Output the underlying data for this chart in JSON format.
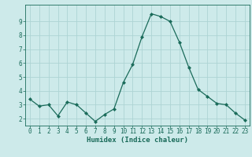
{
  "x": [
    0,
    1,
    2,
    3,
    4,
    5,
    6,
    7,
    8,
    9,
    10,
    11,
    12,
    13,
    14,
    15,
    16,
    17,
    18,
    19,
    20,
    21,
    22,
    23
  ],
  "y": [
    3.4,
    2.9,
    3.0,
    2.2,
    3.2,
    3.0,
    2.4,
    1.8,
    2.3,
    2.7,
    4.6,
    5.9,
    7.9,
    9.55,
    9.35,
    9.0,
    7.5,
    5.7,
    4.1,
    3.6,
    3.1,
    3.0,
    2.4,
    1.9
  ],
  "line_color": "#1a6b5a",
  "marker": "D",
  "marker_size": 2.0,
  "bg_color": "#cdeaea",
  "grid_color": "#add4d4",
  "xlabel": "Humidex (Indice chaleur)",
  "xlim": [
    -0.5,
    23.5
  ],
  "ylim": [
    1.5,
    10.2
  ],
  "yticks": [
    2,
    3,
    4,
    5,
    6,
    7,
    8,
    9
  ],
  "xticks": [
    0,
    1,
    2,
    3,
    4,
    5,
    6,
    7,
    8,
    9,
    10,
    11,
    12,
    13,
    14,
    15,
    16,
    17,
    18,
    19,
    20,
    21,
    22,
    23
  ],
  "axis_color": "#1a6b5a",
  "tick_color": "#1a6b5a",
  "label_color": "#1a6b5a",
  "xlabel_fontsize": 6.5,
  "tick_fontsize": 5.5,
  "linewidth": 0.9
}
